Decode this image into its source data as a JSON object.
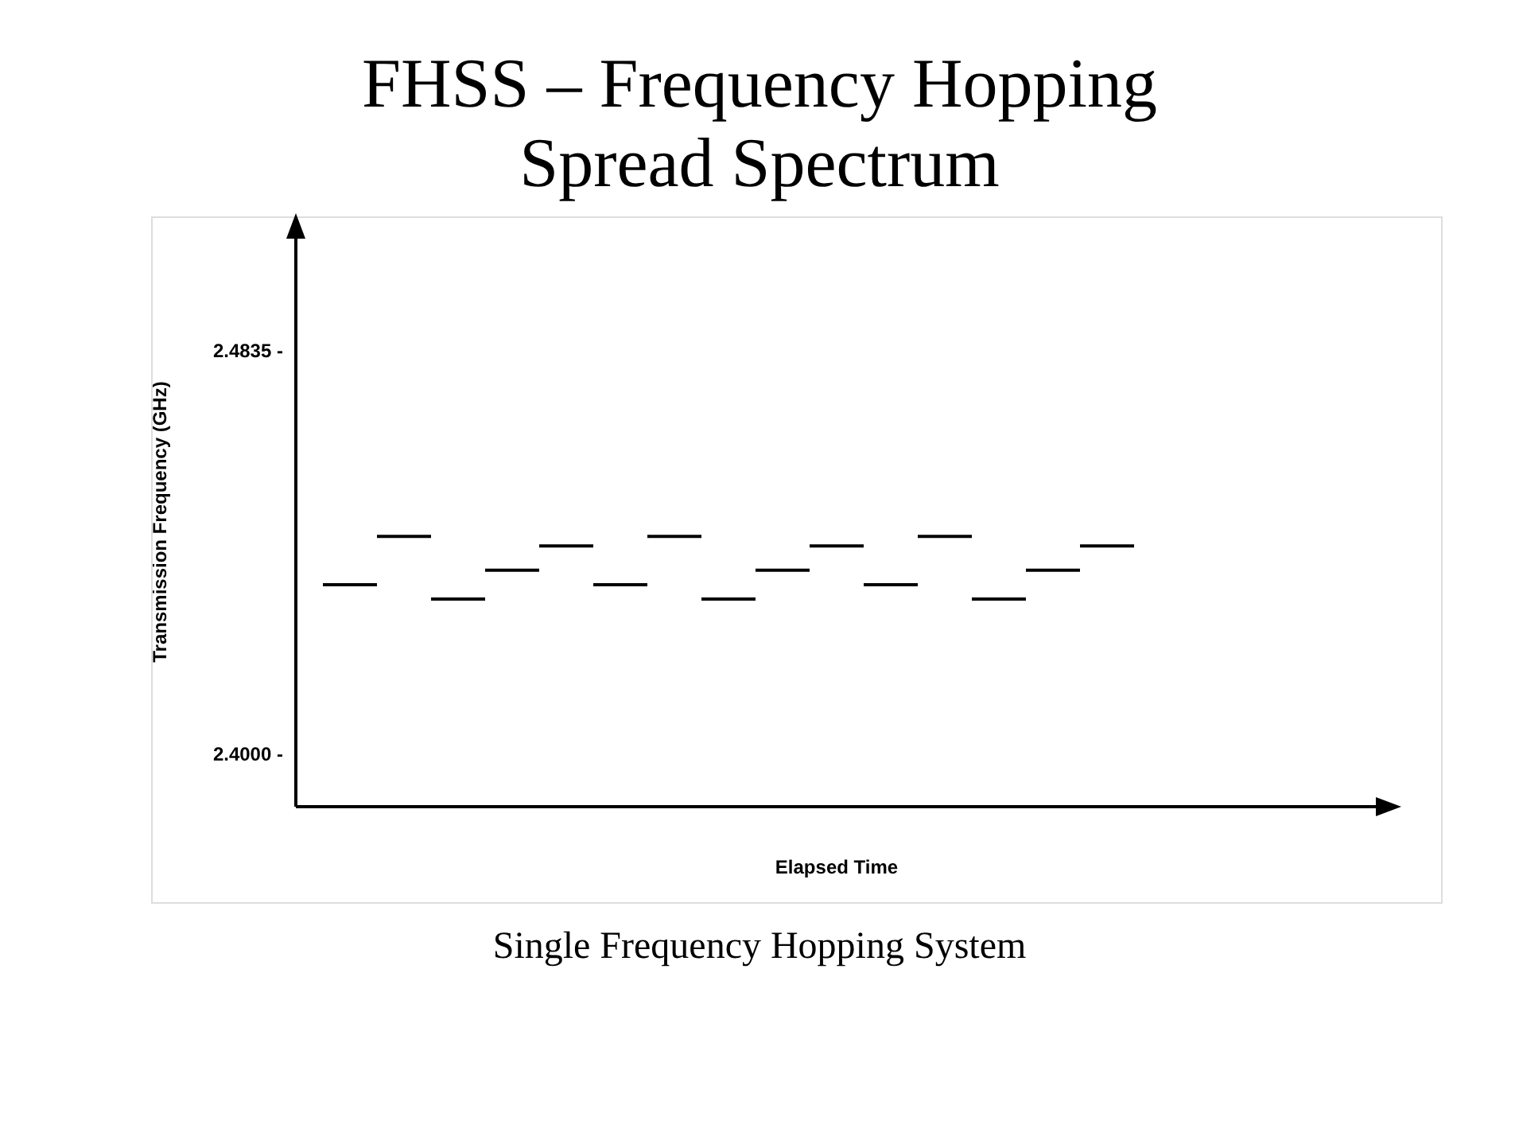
{
  "chart_data": {
    "type": "line",
    "title": "FHSS – Frequency Hopping Spread Spectrum",
    "xlabel": "Elapsed Time",
    "ylabel": "Transmission Frequency (GHz)",
    "annotations": [
      "Single Frequency Hopping System"
    ],
    "categories": [
      null,
      null,
      null,
      null,
      null,
      null,
      null,
      null,
      null,
      null,
      null,
      null,
      null,
      null,
      null,
      null,
      null,
      null,
      null,
      null
    ],
    "series": [
      {
        "color": "#000000",
        "values": [
          2.435,
          2.435,
          null,
          null,
          null,
          null,
          null,
          null,
          null,
          null,
          null,
          null,
          null,
          null,
          null,
          null,
          null,
          null,
          null,
          null
        ]
      },
      {
        "color": "#000000",
        "values": [
          null,
          2.445,
          2.445,
          null,
          null,
          null,
          null,
          null,
          null,
          null,
          null,
          null,
          null,
          null,
          null,
          null,
          null,
          null,
          null,
          null
        ]
      },
      {
        "color": "#000000",
        "values": [
          null,
          null,
          2.432,
          2.432,
          null,
          null,
          null,
          null,
          null,
          null,
          null,
          null,
          null,
          null,
          null,
          null,
          null,
          null,
          null,
          null
        ]
      },
      {
        "color": "#000000",
        "values": [
          null,
          null,
          null,
          2.438,
          2.438,
          null,
          null,
          null,
          null,
          null,
          null,
          null,
          null,
          null,
          null,
          null,
          null,
          null,
          null,
          null
        ]
      },
      {
        "color": "#000000",
        "values": [
          null,
          null,
          null,
          null,
          2.443,
          2.443,
          null,
          null,
          null,
          null,
          null,
          null,
          null,
          null,
          null,
          null,
          null,
          null,
          null,
          null
        ]
      },
      {
        "color": "#000000",
        "values": [
          null,
          null,
          null,
          null,
          null,
          2.435,
          2.435,
          null,
          null,
          null,
          null,
          null,
          null,
          null,
          null,
          null,
          null,
          null,
          null,
          null
        ]
      },
      {
        "color": "#000000",
        "values": [
          null,
          null,
          null,
          null,
          null,
          null,
          2.445,
          2.445,
          null,
          null,
          null,
          null,
          null,
          null,
          null,
          null,
          null,
          null,
          null,
          null
        ]
      },
      {
        "color": "#000000",
        "values": [
          null,
          null,
          null,
          null,
          null,
          null,
          null,
          2.432,
          2.432,
          null,
          null,
          null,
          null,
          null,
          null,
          null,
          null,
          null,
          null,
          null
        ]
      },
      {
        "color": "#000000",
        "values": [
          null,
          null,
          null,
          null,
          null,
          null,
          null,
          null,
          2.438,
          2.438,
          null,
          null,
          null,
          null,
          null,
          null,
          null,
          null,
          null,
          null
        ]
      },
      {
        "color": "#000000",
        "values": [
          null,
          null,
          null,
          null,
          null,
          null,
          null,
          null,
          null,
          2.443,
          2.443,
          null,
          null,
          null,
          null,
          null,
          null,
          null,
          null,
          null
        ]
      },
      {
        "color": "#000000",
        "values": [
          null,
          null,
          null,
          null,
          null,
          null,
          null,
          null,
          null,
          null,
          2.435,
          2.435,
          null,
          null,
          null,
          null,
          null,
          null,
          null,
          null
        ]
      },
      {
        "color": "#000000",
        "values": [
          null,
          null,
          null,
          null,
          null,
          null,
          null,
          null,
          null,
          null,
          null,
          2.445,
          2.445,
          null,
          null,
          null,
          null,
          null,
          null,
          null
        ]
      },
      {
        "color": "#000000",
        "values": [
          null,
          null,
          null,
          null,
          null,
          null,
          null,
          null,
          null,
          null,
          null,
          null,
          2.432,
          2.432,
          null,
          null,
          null,
          null,
          null,
          null
        ]
      },
      {
        "color": "#000000",
        "values": [
          null,
          null,
          null,
          null,
          null,
          null,
          null,
          null,
          null,
          null,
          null,
          null,
          null,
          2.438,
          2.438,
          null,
          null,
          null,
          null,
          null
        ]
      },
      {
        "color": "#000000",
        "values": [
          null,
          null,
          null,
          null,
          null,
          null,
          null,
          null,
          null,
          null,
          null,
          null,
          null,
          null,
          2.443,
          2.443,
          null,
          null,
          null,
          null
        ]
      }
    ],
    "ylim": [
      2.389,
      2.507
    ],
    "yticks": [
      {
        "value": 2.4,
        "label": "2.4000 -"
      },
      {
        "value": 2.4835,
        "label": "2.4835 -"
      }
    ],
    "marker": "none",
    "line_style": "solid"
  }
}
